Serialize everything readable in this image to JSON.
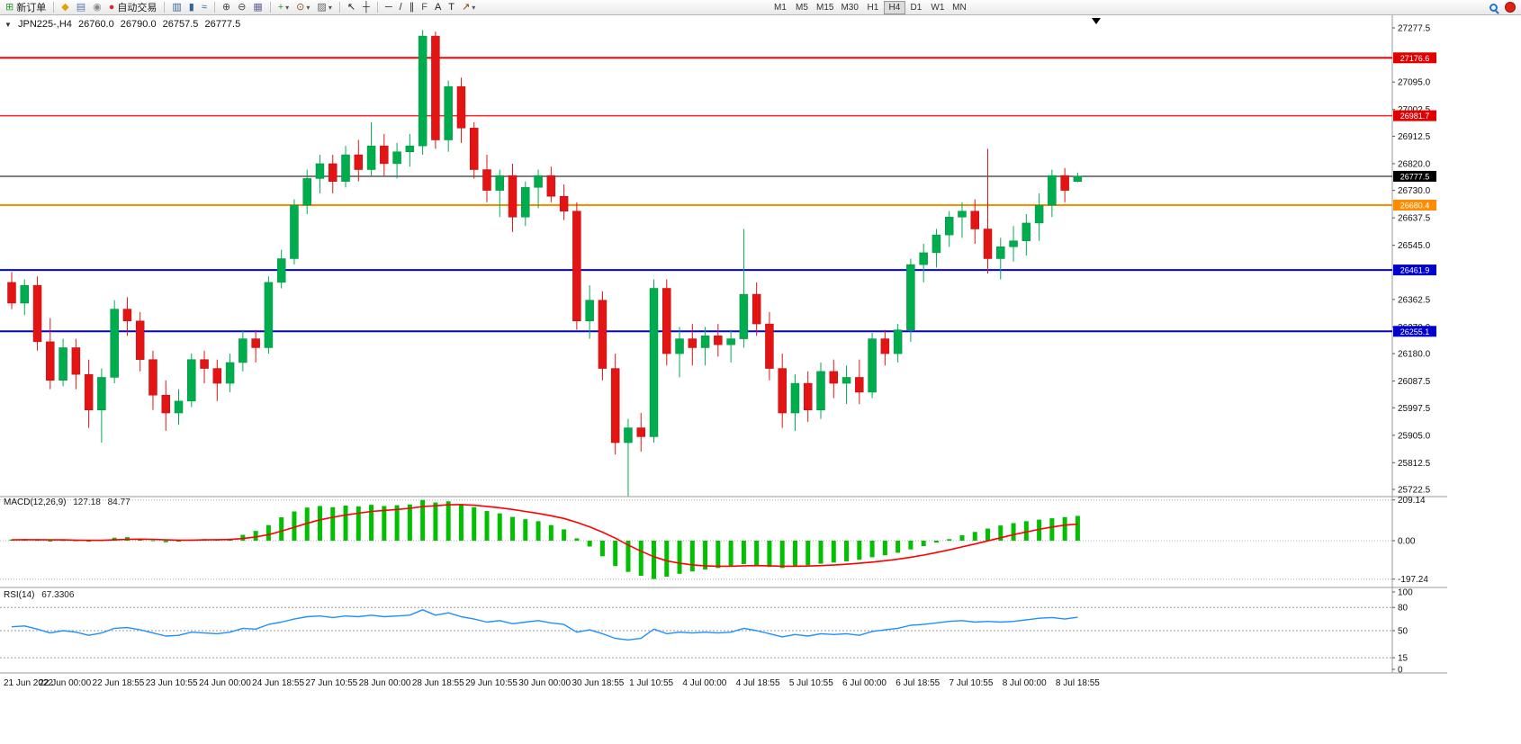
{
  "toolbar": {
    "dropdown_glyph": "▾",
    "items": [
      {
        "type": "button",
        "name": "new-order-button",
        "icon": "new-order-icon",
        "glyph": "⊞",
        "glyph_color": "#2e9e2e",
        "label": "新订单"
      },
      {
        "type": "sep"
      },
      {
        "type": "icon",
        "name": "alert-button",
        "icon": "alert-icon",
        "glyph": "◆",
        "glyph_color": "#dfa400"
      },
      {
        "type": "icon",
        "name": "print-button",
        "icon": "print-icon",
        "glyph": "▤",
        "glyph_color": "#5577aa"
      },
      {
        "type": "icon",
        "name": "market-signal-button",
        "icon": "signal-icon",
        "glyph": "◉",
        "glyph_color": "#888888"
      },
      {
        "type": "button",
        "name": "autotrade-button",
        "icon": "autotrade-icon",
        "glyph": "●",
        "glyph_color": "#cc3333",
        "label": "自动交易"
      },
      {
        "type": "sep"
      },
      {
        "type": "icon",
        "name": "bar-chart-button",
        "icon": "bar-chart-icon",
        "glyph": "▥",
        "glyph_color": "#336699"
      },
      {
        "type": "icon",
        "name": "candlestick-chart-button",
        "icon": "candlestick-chart-icon",
        "glyph": "▮",
        "glyph_color": "#336699"
      },
      {
        "type": "icon",
        "name": "line-chart-button",
        "icon": "line-chart-icon",
        "glyph": "≈",
        "glyph_color": "#336699"
      },
      {
        "type": "sep"
      },
      {
        "type": "icon",
        "name": "zoom-in-button",
        "icon": "zoom-in-icon",
        "glyph": "⊕",
        "glyph_color": "#444444"
      },
      {
        "type": "icon",
        "name": "zoom-out-button",
        "icon": "zoom-out-icon",
        "glyph": "⊖",
        "glyph_color": "#444444"
      },
      {
        "type": "icon",
        "name": "tile-windows-button",
        "icon": "tile-windows-icon",
        "glyph": "▦",
        "glyph_color": "#666699"
      },
      {
        "type": "sep"
      },
      {
        "type": "icon",
        "name": "indicators-button",
        "icon": "indicators-icon",
        "glyph": "+",
        "glyph_color": "#2e9e2e",
        "dropdown": true
      },
      {
        "type": "icon",
        "name": "periods-button",
        "icon": "clock-icon",
        "glyph": "⊙",
        "glyph_color": "#885522",
        "dropdown": true
      },
      {
        "type": "icon",
        "name": "templates-button",
        "icon": "template-icon",
        "glyph": "▨",
        "glyph_color": "#666666",
        "dropdown": true
      },
      {
        "type": "sep"
      },
      {
        "type": "icon",
        "name": "cursor-button",
        "icon": "cursor-icon",
        "glyph": "↖",
        "glyph_color": "#222222"
      },
      {
        "type": "icon",
        "name": "crosshair-button",
        "icon": "crosshair-icon",
        "glyph": "┼",
        "glyph_color": "#222222"
      },
      {
        "type": "sep"
      },
      {
        "type": "icon",
        "name": "horizontal-line-button",
        "icon": "horizontal-line-icon",
        "glyph": "─",
        "glyph_color": "#222222"
      },
      {
        "type": "icon",
        "name": "trendline-button",
        "icon": "trendline-icon",
        "glyph": "/",
        "glyph_color": "#222222"
      },
      {
        "type": "icon",
        "name": "channel-button",
        "icon": "channel-icon",
        "glyph": "∥",
        "glyph_color": "#222222"
      },
      {
        "type": "icon",
        "name": "fibonacci-button",
        "icon": "fibonacci-icon",
        "glyph": "F",
        "glyph_color": "#555555"
      },
      {
        "type": "icon",
        "name": "text-button",
        "icon": "text-icon",
        "glyph": "A",
        "glyph_color": "#222222"
      },
      {
        "type": "icon",
        "name": "text-label-button",
        "icon": "text-label-icon",
        "glyph": "T",
        "glyph_color": "#222222"
      },
      {
        "type": "icon",
        "name": "arrows-button",
        "icon": "arrow-icon",
        "glyph": "↗",
        "glyph_color": "#884400",
        "dropdown": true
      }
    ],
    "timeframes": {
      "labels": [
        "M1",
        "M5",
        "M15",
        "M30",
        "H1",
        "H4",
        "D1",
        "W1",
        "MN"
      ],
      "active": "H4"
    },
    "right_icons": [
      {
        "name": "search-icon",
        "color": "#2277cc"
      },
      {
        "name": "community-icon",
        "color": "#dd2211"
      }
    ]
  },
  "chart": {
    "collapse_glyph": "▼",
    "symbol_period": "JPN225-,H4",
    "open": "26760.0",
    "high": "26790.0",
    "low": "26757.5",
    "close": "26777.5"
  },
  "macd": {
    "name": "MACD(12,26,9)",
    "value": "127.18",
    "signal": "84.77"
  },
  "rsi": {
    "name": "RSI(14)",
    "value": "67.3306"
  },
  "chart_data": {
    "type": "candlestick",
    "symbol": "JPN225-",
    "timeframe": "H4",
    "current_ohlc": {
      "open": 26760.0,
      "high": 26790.0,
      "low": 26757.5,
      "close": 26777.5
    },
    "colors": {
      "up": "#00ad4e",
      "down": "#e21414",
      "up_border": "#00913f",
      "down_border": "#bc0f0f",
      "background": "#ffffff"
    },
    "y_axis": {
      "min": 25722.5,
      "max": 27277.5,
      "ticks": [
        27277.5,
        27095.0,
        27002.5,
        26912.5,
        26820.0,
        26730.0,
        26637.5,
        26545.0,
        26362.5,
        26270.0,
        26180.0,
        26087.5,
        25997.5,
        25905.0,
        25812.5,
        25722.5
      ]
    },
    "hlines": [
      {
        "name": "resistance-line-upper",
        "value": 27176.6,
        "color": "#ff0000",
        "width": 2
      },
      {
        "name": "resistance-line-lower",
        "value": 26981.7,
        "color": "#ff2222",
        "width": 1.5
      },
      {
        "name": "current-price-line",
        "value": 26777.5,
        "color": "#000000",
        "width": 1
      },
      {
        "name": "orange-level-line",
        "value": 26680.4,
        "color": "#ff8c00",
        "width": 2
      },
      {
        "name": "support-line-upper",
        "value": 26461.9,
        "color": "#0000ee",
        "width": 2
      },
      {
        "name": "support-line-lower",
        "value": 26255.1,
        "color": "#0000ee",
        "width": 2
      }
    ],
    "price_badges": [
      {
        "name": "price-badge-27176-6",
        "value": 27176.6,
        "color": "#e00000"
      },
      {
        "name": "price-badge-26981-7",
        "value": 26981.7,
        "color": "#e00000"
      },
      {
        "name": "price-badge-26777-5",
        "value": 26777.5,
        "color": "#000000"
      },
      {
        "name": "price-badge-26680-4",
        "value": 26680.4,
        "color": "#ff8c00"
      },
      {
        "name": "price-badge-26461-9",
        "value": 26461.9,
        "color": "#0000cc"
      },
      {
        "name": "price-badge-26255-1",
        "value": 26255.1,
        "color": "#0000cc"
      }
    ],
    "x_labels": [
      "21 Jun 2022",
      "22 Jun 00:00",
      "22 Jun 18:55",
      "23 Jun 10:55",
      "24 Jun 00:00",
      "24 Jun 18:55",
      "27 Jun 10:55",
      "28 Jun 00:00",
      "28 Jun 18:55",
      "29 Jun 10:55",
      "30 Jun 00:00",
      "30 Jun 18:55",
      "1 Jul 10:55",
      "4 Jul 00:00",
      "4 Jul 18:55",
      "5 Jul 10:55",
      "6 Jul 00:00",
      "6 Jul 18:55",
      "7 Jul 10:55",
      "8 Jul 00:00",
      "8 Jul 18:55"
    ],
    "candles": [
      [
        26420,
        26455,
        26330,
        26350
      ],
      [
        26350,
        26430,
        26310,
        26410
      ],
      [
        26410,
        26440,
        26190,
        26220
      ],
      [
        26220,
        26300,
        26060,
        26090
      ],
      [
        26090,
        26230,
        26070,
        26200
      ],
      [
        26200,
        26230,
        26060,
        26110
      ],
      [
        26110,
        26160,
        25930,
        25990
      ],
      [
        25990,
        26130,
        25880,
        26100
      ],
      [
        26100,
        26360,
        26080,
        26330
      ],
      [
        26330,
        26370,
        26240,
        26290
      ],
      [
        26290,
        26320,
        26120,
        26160
      ],
      [
        26160,
        26190,
        25990,
        26040
      ],
      [
        26040,
        26090,
        25920,
        25980
      ],
      [
        25980,
        26060,
        25940,
        26020
      ],
      [
        26020,
        26180,
        26000,
        26160
      ],
      [
        26160,
        26190,
        26080,
        26130
      ],
      [
        26130,
        26160,
        26020,
        26080
      ],
      [
        26080,
        26180,
        26050,
        26150
      ],
      [
        26150,
        26260,
        26120,
        26230
      ],
      [
        26230,
        26260,
        26150,
        26200
      ],
      [
        26200,
        26440,
        26180,
        26420
      ],
      [
        26420,
        26530,
        26400,
        26500
      ],
      [
        26500,
        26700,
        26480,
        26680
      ],
      [
        26680,
        26800,
        26650,
        26770
      ],
      [
        26770,
        26850,
        26720,
        26820
      ],
      [
        26820,
        26850,
        26720,
        26760
      ],
      [
        26760,
        26880,
        26740,
        26850
      ],
      [
        26850,
        26900,
        26760,
        26800
      ],
      [
        26800,
        26960,
        26780,
        26880
      ],
      [
        26880,
        26920,
        26780,
        26820
      ],
      [
        26820,
        26890,
        26770,
        26860
      ],
      [
        26860,
        26920,
        26810,
        26880
      ],
      [
        26880,
        27270,
        26850,
        27250
      ],
      [
        27250,
        27265,
        26870,
        26900
      ],
      [
        26900,
        27100,
        26860,
        27080
      ],
      [
        27080,
        27110,
        26890,
        26940
      ],
      [
        26940,
        26960,
        26770,
        26800
      ],
      [
        26800,
        26850,
        26690,
        26730
      ],
      [
        26730,
        26800,
        26640,
        26780
      ],
      [
        26780,
        26820,
        26590,
        26640
      ],
      [
        26640,
        26760,
        26610,
        26740
      ],
      [
        26740,
        26800,
        26670,
        26780
      ],
      [
        26780,
        26810,
        26690,
        26710
      ],
      [
        26710,
        26750,
        26630,
        26660
      ],
      [
        26660,
        26690,
        26260,
        26290
      ],
      [
        26290,
        26410,
        26230,
        26360
      ],
      [
        26360,
        26390,
        26090,
        26130
      ],
      [
        26130,
        26180,
        25840,
        25880
      ],
      [
        25880,
        25960,
        25700,
        25930
      ],
      [
        25930,
        25980,
        25850,
        25900
      ],
      [
        25900,
        26430,
        25880,
        26400
      ],
      [
        26400,
        26430,
        26140,
        26180
      ],
      [
        26180,
        26270,
        26100,
        26230
      ],
      [
        26230,
        26280,
        26140,
        26200
      ],
      [
        26200,
        26270,
        26140,
        26240
      ],
      [
        26240,
        26280,
        26170,
        26210
      ],
      [
        26210,
        26260,
        26150,
        26230
      ],
      [
        26230,
        26600,
        26200,
        26380
      ],
      [
        26380,
        26420,
        26240,
        26280
      ],
      [
        26280,
        26320,
        26090,
        26130
      ],
      [
        26130,
        26180,
        25930,
        25980
      ],
      [
        25980,
        26110,
        25920,
        26080
      ],
      [
        26080,
        26120,
        25950,
        25990
      ],
      [
        25990,
        26150,
        25960,
        26120
      ],
      [
        26120,
        26160,
        26030,
        26080
      ],
      [
        26080,
        26140,
        26010,
        26100
      ],
      [
        26100,
        26160,
        26010,
        26050
      ],
      [
        26050,
        26250,
        26030,
        26230
      ],
      [
        26230,
        26260,
        26140,
        26180
      ],
      [
        26180,
        26280,
        26150,
        26260
      ],
      [
        26260,
        26500,
        26220,
        26480
      ],
      [
        26480,
        26550,
        26420,
        26520
      ],
      [
        26520,
        26600,
        26470,
        26580
      ],
      [
        26580,
        26660,
        26540,
        26640
      ],
      [
        26640,
        26690,
        26570,
        26660
      ],
      [
        26660,
        26700,
        26550,
        26600
      ],
      [
        26600,
        26870,
        26450,
        26500
      ],
      [
        26500,
        26570,
        26430,
        26540
      ],
      [
        26540,
        26610,
        26490,
        26560
      ],
      [
        26560,
        26650,
        26510,
        26620
      ],
      [
        26620,
        26720,
        26560,
        26680
      ],
      [
        26680,
        26800,
        26640,
        26780
      ],
      [
        26780,
        26805,
        26690,
        26730
      ],
      [
        26760,
        26790,
        26757.5,
        26777.5
      ]
    ],
    "indicators": {
      "macd": {
        "name": "MACD(12,26,9)",
        "value": 127.18,
        "signal_value": 84.77,
        "axis": [
          209.14,
          0.0,
          -197.24
        ],
        "colors": {
          "histogram": "#00c000",
          "signal": "#ff0000"
        },
        "histogram": [
          6,
          8,
          4,
          -2,
          3,
          2,
          -5,
          3,
          15,
          18,
          10,
          2,
          -8,
          -5,
          5,
          8,
          6,
          10,
          30,
          50,
          80,
          120,
          150,
          170,
          178,
          172,
          180,
          176,
          184,
          178,
          182,
          186,
          209,
          196,
          202,
          188,
          172,
          152,
          140,
          122,
          110,
          100,
          80,
          58,
          12,
          -30,
          -80,
          -130,
          -160,
          -180,
          -197,
          -185,
          -170,
          -158,
          -148,
          -140,
          -132,
          -120,
          -125,
          -135,
          -140,
          -132,
          -126,
          -118,
          -112,
          -106,
          -98,
          -85,
          -75,
          -62,
          -45,
          -28,
          -10,
          8,
          28,
          45,
          62,
          78,
          90,
          100,
          108,
          115,
          121,
          127.18
        ],
        "signal": [
          4,
          5,
          5,
          4,
          4,
          3,
          2,
          2,
          4,
          7,
          8,
          7,
          4,
          3,
          3,
          4,
          5,
          6,
          11,
          19,
          31,
          49,
          69,
          89,
          107,
          120,
          132,
          141,
          150,
          155,
          160,
          166,
          175,
          179,
          184,
          185,
          182,
          176,
          169,
          160,
          150,
          140,
          128,
          114,
          94,
          71,
          44,
          13,
          -22,
          -54,
          -82,
          -103,
          -116,
          -124,
          -129,
          -131,
          -131,
          -129,
          -128,
          -129,
          -131,
          -131,
          -130,
          -128,
          -125,
          -121,
          -116,
          -110,
          -103,
          -95,
          -85,
          -74,
          -61,
          -47,
          -32,
          -17,
          -1,
          15,
          31,
          45,
          58,
          70,
          80,
          84.77
        ]
      },
      "rsi": {
        "name": "RSI(14)",
        "value": 67.3306,
        "axis": [
          100,
          80,
          50,
          15,
          0
        ],
        "levels": [
          80,
          50,
          15
        ],
        "color": "#1e90ff",
        "values": [
          55,
          56,
          52,
          47,
          50,
          48,
          44,
          47,
          53,
          54,
          51,
          47,
          43,
          44,
          48,
          47,
          46,
          48,
          53,
          52,
          58,
          61,
          65,
          68,
          69,
          67,
          69,
          68,
          70,
          68,
          69,
          70,
          77,
          70,
          73,
          68,
          65,
          61,
          63,
          59,
          61,
          63,
          60,
          58,
          48,
          51,
          46,
          40,
          38,
          40,
          52,
          46,
          48,
          47,
          48,
          47,
          48,
          53,
          50,
          46,
          42,
          45,
          43,
          46,
          45,
          46,
          44,
          49,
          51,
          53,
          57,
          58,
          60,
          62,
          63,
          61,
          62,
          61,
          62,
          64,
          66,
          67,
          65,
          67.33
        ]
      }
    }
  }
}
